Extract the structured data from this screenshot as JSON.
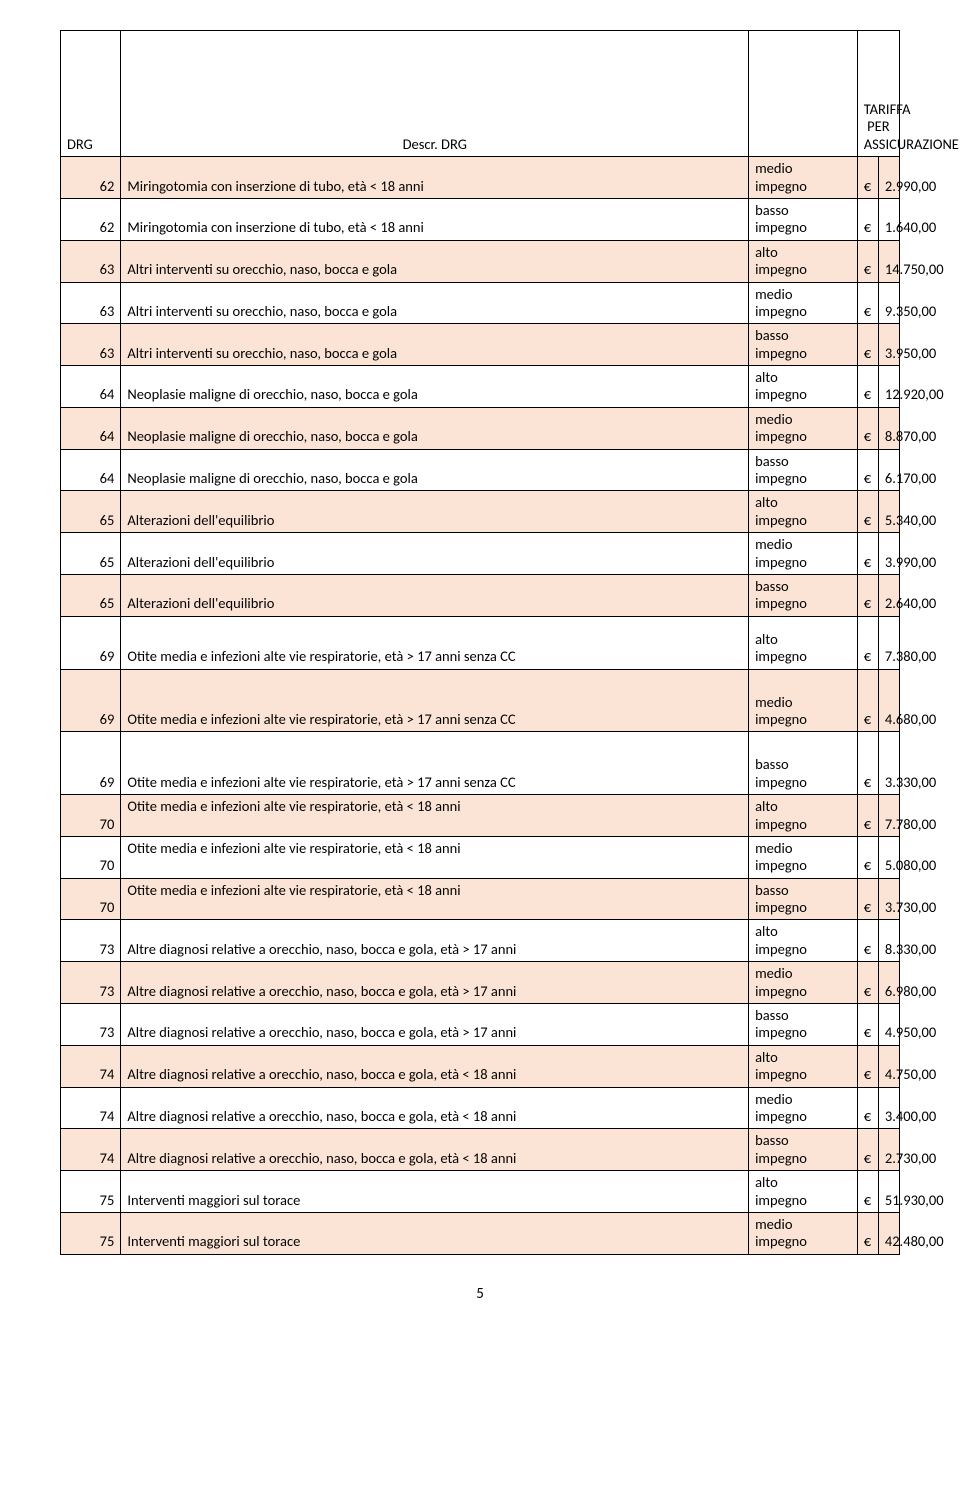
{
  "header": {
    "drg": "DRG",
    "desc": "Descr. DRG",
    "tariffa_line1": "TARIFFA PER",
    "tariffa_line2": "ASSICURAZIONE"
  },
  "rows": [
    {
      "drg": "62",
      "desc": "Miringotomia con inserzione di tubo, età < 18 anni",
      "imp1": "medio",
      "imp2": "impegno",
      "cur": "€",
      "amt": "2.990,00",
      "hl": true
    },
    {
      "drg": "62",
      "desc": "Miringotomia con inserzione di tubo, età < 18 anni",
      "imp1": "basso",
      "imp2": "impegno",
      "cur": "€",
      "amt": "1.640,00",
      "hl": false
    },
    {
      "drg": "63",
      "desc": "Altri interventi su orecchio, naso, bocca e gola",
      "imp1": "alto",
      "imp2": "impegno",
      "cur": "€",
      "amt": "14.750,00",
      "hl": true
    },
    {
      "drg": "63",
      "desc": "Altri interventi su orecchio, naso, bocca e gola",
      "imp1": "medio",
      "imp2": "impegno",
      "cur": "€",
      "amt": "9.350,00",
      "hl": false
    },
    {
      "drg": "63",
      "desc": "Altri interventi su orecchio, naso, bocca e gola",
      "imp1": "basso",
      "imp2": "impegno",
      "cur": "€",
      "amt": "3.950,00",
      "hl": true
    },
    {
      "drg": "64",
      "desc": "Neoplasie maligne di orecchio, naso, bocca e gola",
      "imp1": "alto",
      "imp2": "impegno",
      "cur": "€",
      "amt": "12.920,00",
      "hl": false
    },
    {
      "drg": "64",
      "desc": "Neoplasie maligne di orecchio, naso, bocca e gola",
      "imp1": "medio",
      "imp2": "impegno",
      "cur": "€",
      "amt": "8.870,00",
      "hl": true
    },
    {
      "drg": "64",
      "desc": "Neoplasie maligne di orecchio, naso, bocca e gola",
      "imp1": "basso",
      "imp2": "impegno",
      "cur": "€",
      "amt": "6.170,00",
      "hl": false
    },
    {
      "drg": "65",
      "desc": "Alterazioni dell'equilibrio",
      "imp1": "alto",
      "imp2": "impegno",
      "cur": "€",
      "amt": "5.340,00",
      "hl": true
    },
    {
      "drg": "65",
      "desc": "Alterazioni dell'equilibrio",
      "imp1": "medio",
      "imp2": "impegno",
      "cur": "€",
      "amt": "3.990,00",
      "hl": false
    },
    {
      "drg": "65",
      "desc": "Alterazioni dell'equilibrio",
      "imp1": "basso",
      "imp2": "impegno",
      "cur": "€",
      "amt": "2.640,00",
      "hl": true
    },
    {
      "drg": "69",
      "desc": "Otite media e infezioni alte vie respiratorie, età > 17 anni senza CC",
      "imp1": "alto",
      "imp2": "impegno",
      "cur": "€",
      "amt": "7.380,00",
      "hl": false,
      "pad": "extra"
    },
    {
      "drg": "69",
      "desc": "Otite media e infezioni alte vie respiratorie, età > 17 anni senza CC",
      "imp1": "medio",
      "imp2": "impegno",
      "cur": "€",
      "amt": "4.680,00",
      "hl": true,
      "pad": "extra2"
    },
    {
      "drg": "69",
      "desc": "Otite media e infezioni alte vie respiratorie, età > 17 anni senza CC",
      "imp1": "basso",
      "imp2": "impegno",
      "cur": "€",
      "amt": "3.330,00",
      "hl": false,
      "pad": "extra2"
    },
    {
      "drg": "70",
      "desc": "Otite media e infezioni alte vie respiratorie, età < 18 anni",
      "imp1": "alto",
      "imp2": "impegno",
      "cur": "€",
      "amt": "7.780,00",
      "hl": true,
      "desctop": true
    },
    {
      "drg": "70",
      "desc": "Otite media e infezioni alte vie respiratorie, età < 18 anni",
      "imp1": "medio",
      "imp2": "impegno",
      "cur": "€",
      "amt": "5.080,00",
      "hl": false,
      "desctop": true
    },
    {
      "drg": "70",
      "desc": "Otite media e infezioni alte vie respiratorie, età < 18 anni",
      "imp1": "basso",
      "imp2": "impegno",
      "cur": "€",
      "amt": "3.730,00",
      "hl": true,
      "desctop": true
    },
    {
      "drg": "73",
      "desc": "Altre diagnosi relative a orecchio, naso, bocca e gola, età > 17 anni",
      "imp1": "alto",
      "imp2": "impegno",
      "cur": "€",
      "amt": "8.330,00",
      "hl": false
    },
    {
      "drg": "73",
      "desc": "Altre diagnosi relative a orecchio, naso, bocca e gola, età > 17 anni",
      "imp1": "medio",
      "imp2": "impegno",
      "cur": "€",
      "amt": "6.980,00",
      "hl": true
    },
    {
      "drg": "73",
      "desc": "Altre diagnosi relative a orecchio, naso, bocca e gola, età > 17 anni",
      "imp1": "basso",
      "imp2": "impegno",
      "cur": "€",
      "amt": "4.950,00",
      "hl": false
    },
    {
      "drg": "74",
      "desc": "Altre diagnosi relative a orecchio, naso, bocca e gola, età < 18 anni",
      "imp1": "alto",
      "imp2": "impegno",
      "cur": "€",
      "amt": "4.750,00",
      "hl": true
    },
    {
      "drg": "74",
      "desc": "Altre diagnosi relative a orecchio, naso, bocca e gola, età < 18 anni",
      "imp1": "medio",
      "imp2": "impegno",
      "cur": "€",
      "amt": "3.400,00",
      "hl": false
    },
    {
      "drg": "74",
      "desc": "Altre diagnosi relative a orecchio, naso, bocca e gola, età < 18 anni",
      "imp1": "basso",
      "imp2": "impegno",
      "cur": "€",
      "amt": "2.730,00",
      "hl": true
    },
    {
      "drg": "75",
      "desc": "Interventi maggiori sul torace",
      "imp1": "alto",
      "imp2": "impegno",
      "cur": "€",
      "amt": "51.930,00",
      "hl": false
    },
    {
      "drg": "75",
      "desc": "Interventi maggiori sul torace",
      "imp1": "medio",
      "imp2": "impegno",
      "cur": "€",
      "amt": "42.480,00",
      "hl": true
    }
  ],
  "page_number": "5"
}
